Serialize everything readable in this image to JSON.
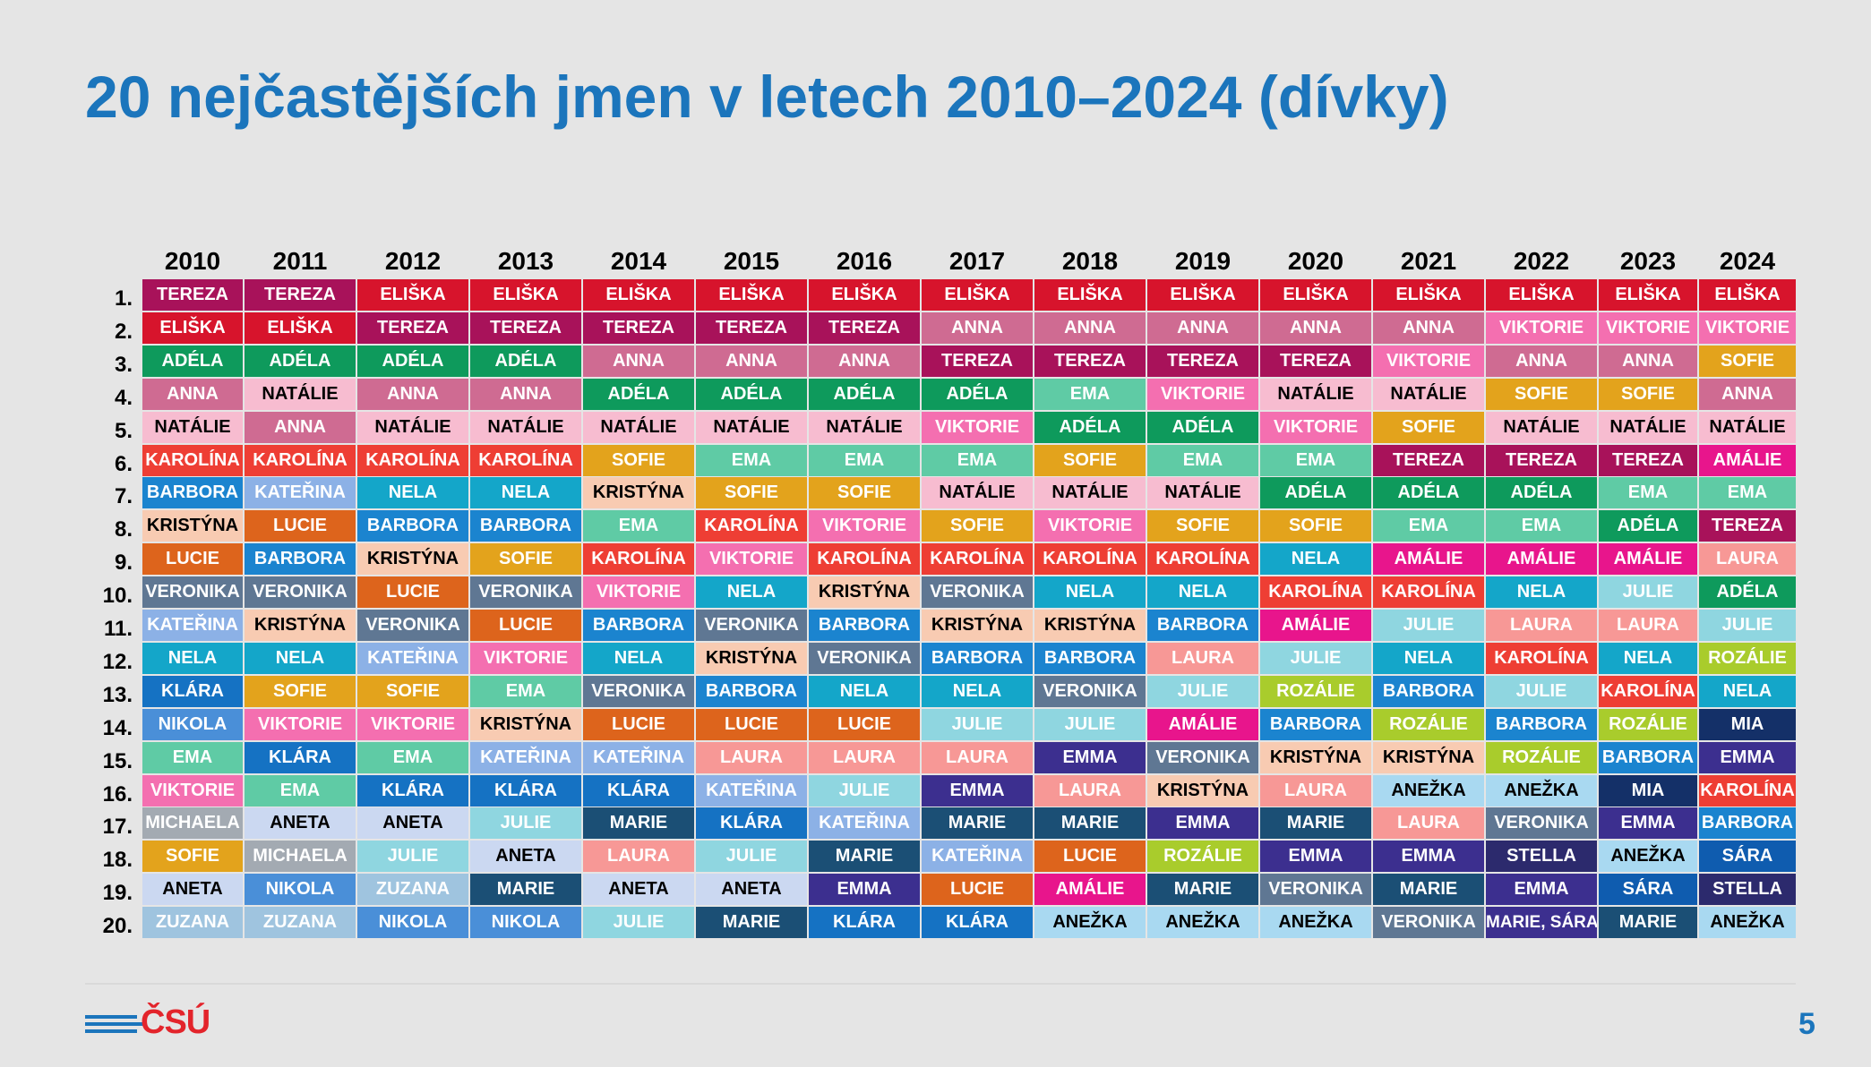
{
  "title": "20 nejčastějších jmen v letech 2010–2024 (dívky)",
  "page_number": "5",
  "logo_text": "ČSÚ",
  "years": [
    "2010",
    "2011",
    "2012",
    "2013",
    "2014",
    "2015",
    "2016",
    "2017",
    "2018",
    "2019",
    "2020",
    "2021",
    "2022",
    "2023",
    "2024"
  ],
  "ranks": [
    "1.",
    "2.",
    "3.",
    "4.",
    "5.",
    "6.",
    "7.",
    "8.",
    "9.",
    "10.",
    "11.",
    "12.",
    "13.",
    "14.",
    "15.",
    "16.",
    "17.",
    "18.",
    "19.",
    "20."
  ],
  "names": {
    "TEREZA": {
      "bg": "#a8125a",
      "fg": "#ffffff"
    },
    "ELIŠKA": {
      "bg": "#d7142c",
      "fg": "#ffffff"
    },
    "ADÉLA": {
      "bg": "#0e9a5c",
      "fg": "#ffffff"
    },
    "ANNA": {
      "bg": "#cf6b92",
      "fg": "#ffffff"
    },
    "NATÁLIE": {
      "bg": "#f7bcd0",
      "fg": "#000000"
    },
    "KAROLÍNA": {
      "bg": "#ee3e34",
      "fg": "#ffffff"
    },
    "BARBORA": {
      "bg": "#1b84cf",
      "fg": "#ffffff"
    },
    "KRISTÝNA": {
      "bg": "#f8cbb2",
      "fg": "#000000"
    },
    "LUCIE": {
      "bg": "#dd641c",
      "fg": "#ffffff"
    },
    "VERONIKA": {
      "bg": "#5f7793",
      "fg": "#ffffff"
    },
    "KATEŘINA": {
      "bg": "#8cb1e6",
      "fg": "#ffffff"
    },
    "NELA": {
      "bg": "#14a6c9",
      "fg": "#ffffff"
    },
    "KLÁRA": {
      "bg": "#1572c3",
      "fg": "#ffffff"
    },
    "NIKOLA": {
      "bg": "#4a8fd8",
      "fg": "#ffffff"
    },
    "EMA": {
      "bg": "#5fcba5",
      "fg": "#ffffff"
    },
    "VIKTORIE": {
      "bg": "#f46fb0",
      "fg": "#ffffff"
    },
    "MICHAELA": {
      "bg": "#a3aab2",
      "fg": "#ffffff"
    },
    "SOFIE": {
      "bg": "#e3a31c",
      "fg": "#ffffff"
    },
    "ANETA": {
      "bg": "#cbd8f1",
      "fg": "#000000"
    },
    "ZUZANA": {
      "bg": "#9fc4df",
      "fg": "#ffffff"
    },
    "JULIE": {
      "bg": "#8fd6e0",
      "fg": "#ffffff"
    },
    "MARIE": {
      "bg": "#1b4f75",
      "fg": "#ffffff"
    },
    "LAURA": {
      "bg": "#f79896",
      "fg": "#ffffff"
    },
    "EMMA": {
      "bg": "#3c2f8f",
      "fg": "#ffffff"
    },
    "AMÁLIE": {
      "bg": "#e8158c",
      "fg": "#ffffff"
    },
    "ANEŽKA": {
      "bg": "#a9d9f1",
      "fg": "#000000"
    },
    "ROZÁLIE": {
      "bg": "#a9cc2c",
      "fg": "#ffffff"
    },
    "STELLA": {
      "bg": "#2c2a6d",
      "fg": "#ffffff"
    },
    "SÁRA": {
      "bg": "#0f5caf",
      "fg": "#ffffff"
    },
    "MIA": {
      "bg": "#143068",
      "fg": "#ffffff"
    },
    "MARIE, SÁRA": {
      "bg": "#3c2f8f",
      "fg": "#ffffff"
    }
  },
  "table": [
    [
      "TEREZA",
      "ELIŠKA",
      "ADÉLA",
      "ANNA",
      "NATÁLIE",
      "KAROLÍNA",
      "BARBORA",
      "KRISTÝNA",
      "LUCIE",
      "VERONIKA",
      "KATEŘINA",
      "NELA",
      "KLÁRA",
      "NIKOLA",
      "EMA",
      "VIKTORIE",
      "MICHAELA",
      "SOFIE",
      "ANETA",
      "ZUZANA"
    ],
    [
      "TEREZA",
      "ELIŠKA",
      "ADÉLA",
      "NATÁLIE",
      "ANNA",
      "KAROLÍNA",
      "KATEŘINA",
      "LUCIE",
      "BARBORA",
      "VERONIKA",
      "KRISTÝNA",
      "NELA",
      "SOFIE",
      "VIKTORIE",
      "KLÁRA",
      "EMA",
      "ANETA",
      "MICHAELA",
      "NIKOLA",
      "ZUZANA"
    ],
    [
      "ELIŠKA",
      "TEREZA",
      "ADÉLA",
      "ANNA",
      "NATÁLIE",
      "KAROLÍNA",
      "NELA",
      "BARBORA",
      "KRISTÝNA",
      "LUCIE",
      "VERONIKA",
      "KATEŘINA",
      "SOFIE",
      "VIKTORIE",
      "EMA",
      "KLÁRA",
      "ANETA",
      "JULIE",
      "ZUZANA",
      "NIKOLA"
    ],
    [
      "ELIŠKA",
      "TEREZA",
      "ADÉLA",
      "ANNA",
      "NATÁLIE",
      "KAROLÍNA",
      "NELA",
      "BARBORA",
      "SOFIE",
      "VERONIKA",
      "LUCIE",
      "VIKTORIE",
      "EMA",
      "KRISTÝNA",
      "KATEŘINA",
      "KLÁRA",
      "JULIE",
      "ANETA",
      "MARIE",
      "NIKOLA"
    ],
    [
      "ELIŠKA",
      "TEREZA",
      "ANNA",
      "ADÉLA",
      "NATÁLIE",
      "SOFIE",
      "KRISTÝNA",
      "EMA",
      "KAROLÍNA",
      "VIKTORIE",
      "BARBORA",
      "NELA",
      "VERONIKA",
      "LUCIE",
      "KATEŘINA",
      "KLÁRA",
      "MARIE",
      "LAURA",
      "ANETA",
      "JULIE"
    ],
    [
      "ELIŠKA",
      "TEREZA",
      "ANNA",
      "ADÉLA",
      "NATÁLIE",
      "EMA",
      "SOFIE",
      "KAROLÍNA",
      "VIKTORIE",
      "NELA",
      "VERONIKA",
      "KRISTÝNA",
      "BARBORA",
      "LUCIE",
      "LAURA",
      "KATEŘINA",
      "KLÁRA",
      "JULIE",
      "ANETA",
      "MARIE"
    ],
    [
      "ELIŠKA",
      "TEREZA",
      "ANNA",
      "ADÉLA",
      "NATÁLIE",
      "EMA",
      "SOFIE",
      "VIKTORIE",
      "KAROLÍNA",
      "KRISTÝNA",
      "BARBORA",
      "VERONIKA",
      "NELA",
      "LUCIE",
      "LAURA",
      "JULIE",
      "KATEŘINA",
      "MARIE",
      "EMMA",
      "KLÁRA"
    ],
    [
      "ELIŠKA",
      "ANNA",
      "TEREZA",
      "ADÉLA",
      "VIKTORIE",
      "EMA",
      "NATÁLIE",
      "SOFIE",
      "KAROLÍNA",
      "VERONIKA",
      "KRISTÝNA",
      "BARBORA",
      "NELA",
      "JULIE",
      "LAURA",
      "EMMA",
      "MARIE",
      "KATEŘINA",
      "LUCIE",
      "KLÁRA"
    ],
    [
      "ELIŠKA",
      "ANNA",
      "TEREZA",
      "EMA",
      "ADÉLA",
      "SOFIE",
      "NATÁLIE",
      "VIKTORIE",
      "KAROLÍNA",
      "NELA",
      "KRISTÝNA",
      "BARBORA",
      "VERONIKA",
      "JULIE",
      "EMMA",
      "LAURA",
      "MARIE",
      "LUCIE",
      "AMÁLIE",
      "ANEŽKA"
    ],
    [
      "ELIŠKA",
      "ANNA",
      "TEREZA",
      "VIKTORIE",
      "ADÉLA",
      "EMA",
      "NATÁLIE",
      "SOFIE",
      "KAROLÍNA",
      "NELA",
      "BARBORA",
      "LAURA",
      "JULIE",
      "AMÁLIE",
      "VERONIKA",
      "KRISTÝNA",
      "EMMA",
      "ROZÁLIE",
      "MARIE",
      "ANEŽKA"
    ],
    [
      "ELIŠKA",
      "ANNA",
      "TEREZA",
      "NATÁLIE",
      "VIKTORIE",
      "EMA",
      "ADÉLA",
      "SOFIE",
      "NELA",
      "KAROLÍNA",
      "AMÁLIE",
      "JULIE",
      "ROZÁLIE",
      "BARBORA",
      "KRISTÝNA",
      "LAURA",
      "MARIE",
      "EMMA",
      "VERONIKA",
      "ANEŽKA"
    ],
    [
      "ELIŠKA",
      "ANNA",
      "VIKTORIE",
      "NATÁLIE",
      "SOFIE",
      "TEREZA",
      "ADÉLA",
      "EMA",
      "AMÁLIE",
      "KAROLÍNA",
      "JULIE",
      "NELA",
      "BARBORA",
      "ROZÁLIE",
      "KRISTÝNA",
      "ANEŽKA",
      "LAURA",
      "EMMA",
      "MARIE",
      "VERONIKA"
    ],
    [
      "ELIŠKA",
      "VIKTORIE",
      "ANNA",
      "SOFIE",
      "NATÁLIE",
      "TEREZA",
      "ADÉLA",
      "EMA",
      "AMÁLIE",
      "NELA",
      "LAURA",
      "KAROLÍNA",
      "JULIE",
      "BARBORA",
      "ROZÁLIE",
      "ANEŽKA",
      "VERONIKA",
      "STELLA",
      "EMMA",
      "MARIE, SÁRA"
    ],
    [
      "ELIŠKA",
      "VIKTORIE",
      "ANNA",
      "SOFIE",
      "NATÁLIE",
      "TEREZA",
      "EMA",
      "ADÉLA",
      "AMÁLIE",
      "JULIE",
      "LAURA",
      "NELA",
      "KAROLÍNA",
      "ROZÁLIE",
      "BARBORA",
      "MIA",
      "EMMA",
      "ANEŽKA",
      "SÁRA",
      "MARIE"
    ],
    [
      "ELIŠKA",
      "VIKTORIE",
      "SOFIE",
      "ANNA",
      "NATÁLIE",
      "AMÁLIE",
      "EMA",
      "TEREZA",
      "LAURA",
      "ADÉLA",
      "JULIE",
      "ROZÁLIE",
      "NELA",
      "MIA",
      "EMMA",
      "KAROLÍNA",
      "BARBORA",
      "SÁRA",
      "STELLA",
      "ANEŽKA"
    ]
  ]
}
